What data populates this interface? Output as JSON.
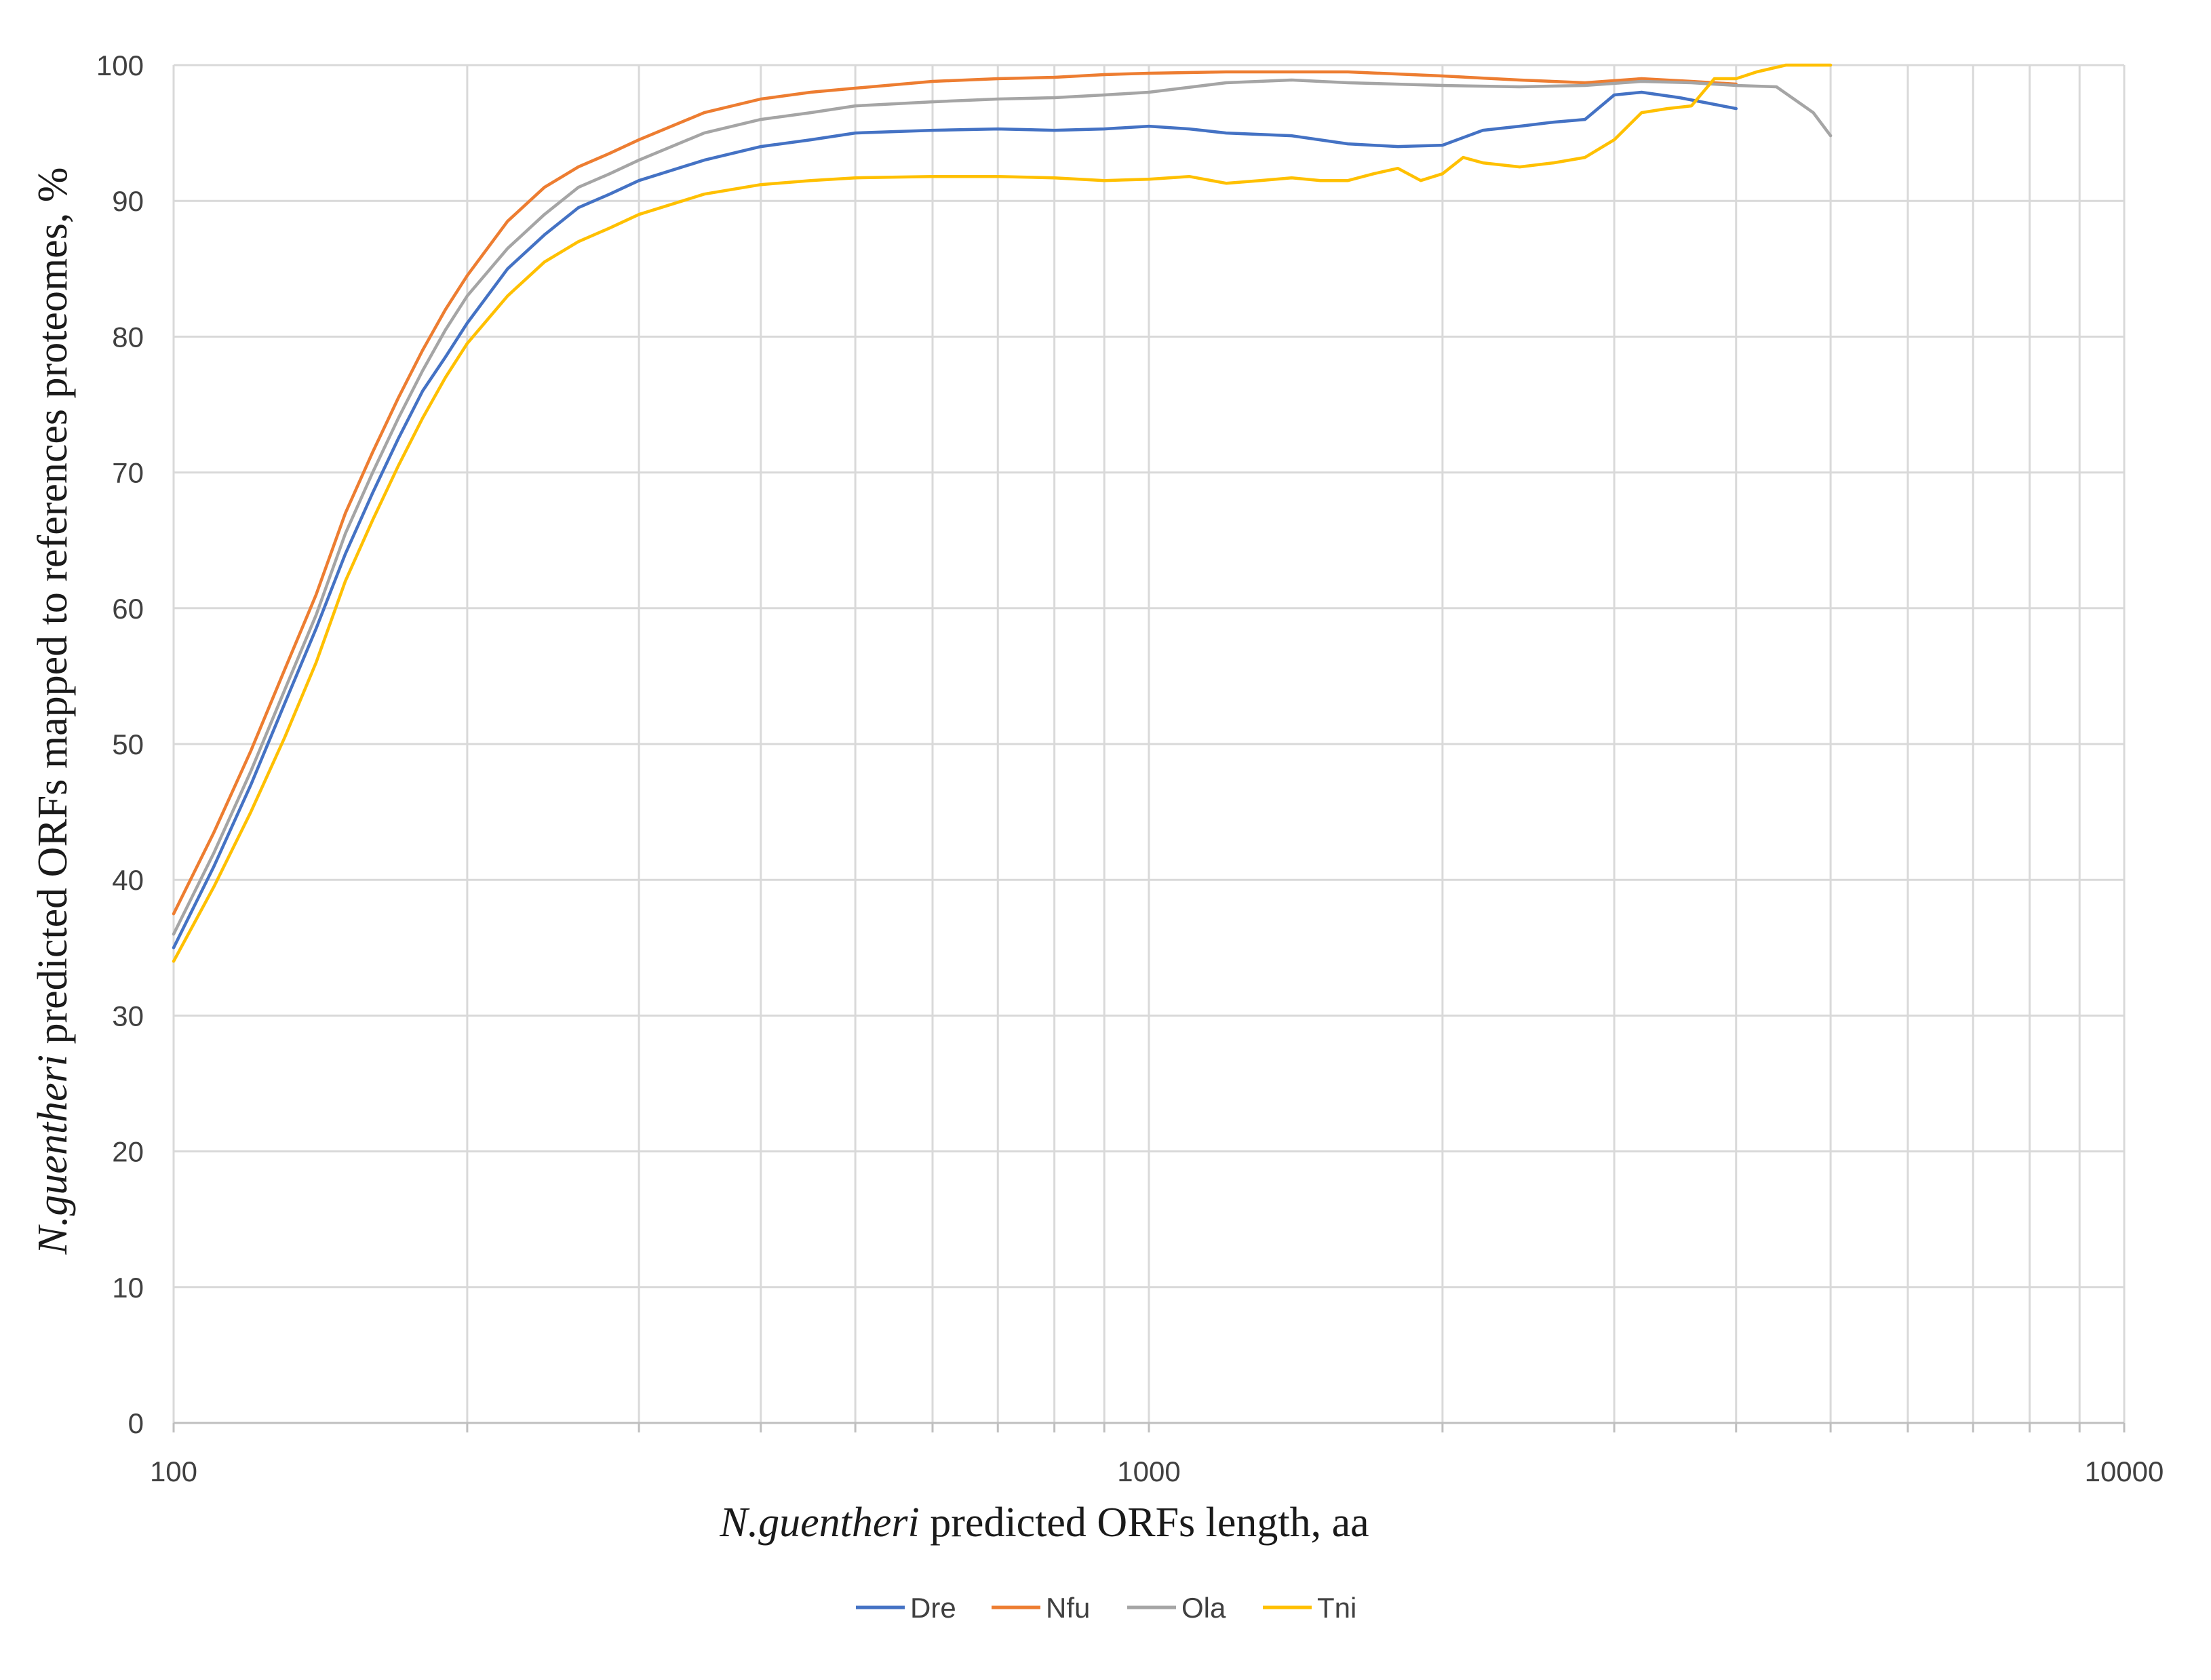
{
  "chart_data": {
    "type": "line",
    "xscale": "log",
    "xlim": [
      100,
      10000
    ],
    "ylim": [
      0,
      100
    ],
    "x_ticks": [
      "100",
      "1000",
      "10000"
    ],
    "x_minor_ticks": [
      200,
      300,
      400,
      500,
      600,
      700,
      800,
      900,
      2000,
      3000,
      4000,
      5000,
      6000,
      7000,
      8000,
      9000
    ],
    "y_ticks": [
      "0",
      "10",
      "20",
      "30",
      "40",
      "50",
      "60",
      "70",
      "80",
      "90",
      "100"
    ],
    "xlabel": {
      "italic": "N.guentheri",
      "rest": " predicted ORFs length, aa"
    },
    "ylabel": {
      "italic": "N.guentheri",
      "rest": " predicted ORFs mapped to references proteomes, %"
    },
    "grid": true,
    "legend": "bottom-center",
    "series": [
      {
        "name": "Dre",
        "color": "#4472C4",
        "x": [
          100,
          110,
          120,
          130,
          140,
          150,
          160,
          170,
          180,
          190,
          200,
          220,
          240,
          260,
          280,
          300,
          350,
          400,
          450,
          500,
          600,
          700,
          800,
          900,
          1000,
          1100,
          1200,
          1400,
          1600,
          1800,
          2000,
          2200,
          2400,
          2600,
          2800,
          3000,
          3200,
          3500,
          4000
        ],
        "y": [
          35,
          41,
          47,
          53,
          58.5,
          64,
          68.5,
          72.5,
          76,
          78.5,
          81,
          85,
          87.5,
          89.5,
          90.5,
          91.5,
          93,
          94,
          94.5,
          95,
          95.2,
          95.3,
          95.2,
          95.3,
          95.5,
          95.3,
          95,
          94.8,
          94.2,
          94,
          94.1,
          95.2,
          95.5,
          95.8,
          96,
          97.8,
          98,
          97.6,
          96.8
        ]
      },
      {
        "name": "Nfu",
        "color": "#ED7D31",
        "x": [
          100,
          110,
          120,
          130,
          140,
          150,
          160,
          170,
          180,
          190,
          200,
          220,
          240,
          260,
          280,
          300,
          350,
          400,
          450,
          500,
          600,
          700,
          800,
          900,
          1000,
          1200,
          1400,
          1600,
          2000,
          2400,
          2800,
          3200,
          3600,
          4000
        ],
        "y": [
          37.5,
          43.5,
          49.5,
          55.5,
          61,
          67,
          71.5,
          75.5,
          79,
          82,
          84.5,
          88.5,
          91,
          92.5,
          93.5,
          94.5,
          96.5,
          97.5,
          98,
          98.3,
          98.8,
          99,
          99.1,
          99.3,
          99.4,
          99.5,
          99.5,
          99.5,
          99.2,
          98.9,
          98.7,
          99,
          98.8,
          98.6
        ]
      },
      {
        "name": "Ola",
        "color": "#A5A5A5",
        "x": [
          100,
          110,
          120,
          130,
          140,
          150,
          160,
          170,
          180,
          190,
          200,
          220,
          240,
          260,
          280,
          300,
          350,
          400,
          450,
          500,
          600,
          700,
          800,
          900,
          1000,
          1200,
          1400,
          1600,
          2000,
          2400,
          2800,
          3200,
          3600,
          4000,
          4400,
          4800,
          5000
        ],
        "y": [
          36,
          42,
          48,
          54,
          59.5,
          65.5,
          70,
          74,
          77.5,
          80.5,
          83,
          86.5,
          89,
          91,
          92,
          93,
          95,
          96,
          96.5,
          97,
          97.3,
          97.5,
          97.6,
          97.8,
          98,
          98.7,
          98.9,
          98.7,
          98.5,
          98.4,
          98.5,
          98.8,
          98.7,
          98.5,
          98.4,
          96.5,
          94.8
        ]
      },
      {
        "name": "Tni",
        "color": "#FFC000",
        "x": [
          100,
          110,
          120,
          130,
          140,
          150,
          160,
          170,
          180,
          190,
          200,
          220,
          240,
          260,
          280,
          300,
          350,
          400,
          450,
          500,
          600,
          700,
          800,
          900,
          1000,
          1100,
          1200,
          1300,
          1400,
          1500,
          1600,
          1700,
          1800,
          1900,
          2000,
          2100,
          2200,
          2400,
          2600,
          2800,
          3000,
          3200,
          3400,
          3600,
          3800,
          4000,
          4200,
          4500,
          5000
        ],
        "y": [
          34,
          39.5,
          45,
          50.5,
          56,
          62,
          66.5,
          70.5,
          74,
          77,
          79.5,
          83,
          85.5,
          87,
          88,
          89,
          90.5,
          91.2,
          91.5,
          91.7,
          91.8,
          91.8,
          91.7,
          91.5,
          91.6,
          91.8,
          91.3,
          91.5,
          91.7,
          91.5,
          91.5,
          92,
          92.4,
          91.5,
          92,
          93.2,
          92.8,
          92.5,
          92.8,
          93.2,
          94.5,
          96.5,
          96.8,
          97,
          99,
          99,
          99.5,
          100,
          100
        ]
      }
    ]
  }
}
